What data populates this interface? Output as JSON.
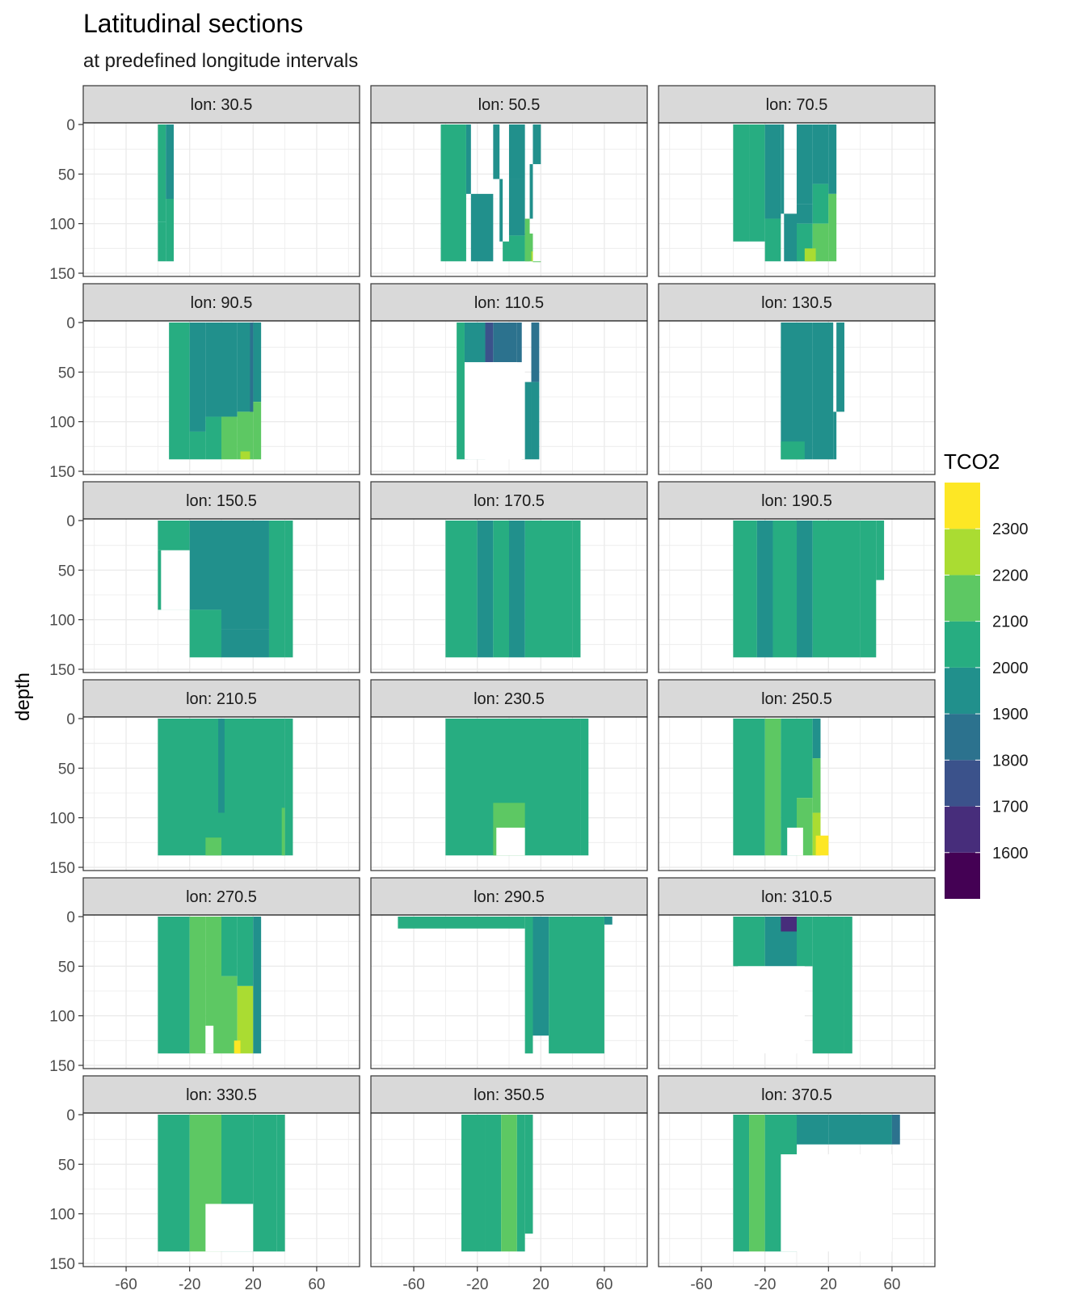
{
  "chart_data": {
    "type": "faceted-filled-contour",
    "title": "Latitudinal sections",
    "subtitle": "at predefined longitude intervals",
    "xlabel": "",
    "ylabel": "depth",
    "xlim": [
      -87,
      87
    ],
    "ylim": [
      0,
      150
    ],
    "y_reversed": true,
    "x_ticks": [
      -60,
      -20,
      20,
      60
    ],
    "x_tick_labels": [
      "-60",
      "-20",
      "20",
      "60"
    ],
    "y_ticks": [
      0,
      50,
      100,
      150
    ],
    "y_tick_labels": [
      "0",
      "50",
      "100",
      "150"
    ],
    "grid": true,
    "legend": {
      "title": "TCO2",
      "position": "right",
      "breaks": [
        1500,
        1600,
        1700,
        1800,
        1900,
        2000,
        2100,
        2200,
        2300,
        2400
      ],
      "labels": [
        "1600",
        "1700",
        "1800",
        "1900",
        "2000",
        "2100",
        "2200",
        "2300"
      ],
      "colors": [
        "#440154",
        "#472D7B",
        "#3B528B",
        "#2C728E",
        "#21908C",
        "#27AD81",
        "#5DC863",
        "#AADC32",
        "#FDE725"
      ]
    },
    "panels": [
      {
        "label": "lon: 30.5",
        "columns": [
          [
            -40,
            0,
            98,
            5
          ],
          [
            -40,
            98,
            138,
            5
          ],
          [
            -35,
            0,
            75,
            4
          ],
          [
            -35,
            75,
            138,
            5
          ]
        ],
        "patches": []
      },
      {
        "label": "lon: 50.5",
        "columns": [
          [
            -43,
            0,
            138,
            5
          ],
          [
            -27,
            0,
            70,
            4
          ],
          [
            -24,
            70,
            138,
            4
          ],
          [
            -10,
            0,
            55,
            4
          ],
          [
            -6,
            55,
            118,
            4
          ],
          [
            -4,
            118,
            138,
            5
          ],
          [
            0,
            0,
            55,
            4
          ],
          [
            0,
            55,
            112,
            4
          ],
          [
            0,
            112,
            138,
            5
          ],
          [
            15,
            0,
            40,
            4
          ],
          [
            13,
            40,
            95,
            4
          ],
          [
            10,
            95,
            138,
            6
          ],
          [
            15,
            138,
            138,
            6
          ]
        ],
        "patches": [
          [
            10,
            110,
            15,
            138,
            6
          ],
          [
            14,
            128,
            15,
            138,
            7
          ]
        ]
      },
      {
        "label": "lon: 70.5",
        "columns": [
          [
            -40,
            0,
            118,
            5
          ],
          [
            -30,
            0,
            118,
            5
          ],
          [
            -20,
            0,
            95,
            4
          ],
          [
            -20,
            95,
            138,
            5
          ],
          [
            -10,
            0,
            90,
            4
          ],
          [
            -8,
            90,
            138,
            4
          ],
          [
            0,
            0,
            80,
            4
          ],
          [
            0,
            80,
            100,
            4
          ],
          [
            0,
            100,
            138,
            5
          ],
          [
            10,
            0,
            60,
            4
          ],
          [
            10,
            60,
            100,
            5
          ],
          [
            10,
            100,
            138,
            6
          ],
          [
            20,
            0,
            70,
            4
          ],
          [
            20,
            70,
            138,
            6
          ]
        ],
        "patches": [
          [
            5,
            125,
            12,
            138,
            7
          ]
        ]
      },
      {
        "label": "lon: 90.5",
        "columns": [
          [
            -33,
            0,
            138,
            5
          ],
          [
            -20,
            0,
            110,
            4
          ],
          [
            -20,
            110,
            138,
            5
          ],
          [
            -10,
            0,
            95,
            4
          ],
          [
            -10,
            95,
            138,
            5
          ],
          [
            0,
            0,
            95,
            4
          ],
          [
            0,
            95,
            138,
            6
          ],
          [
            10,
            0,
            90,
            4
          ],
          [
            10,
            90,
            138,
            6
          ],
          [
            20,
            0,
            80,
            4
          ],
          [
            20,
            80,
            138,
            6
          ]
        ],
        "patches": [
          [
            18,
            0,
            20,
            90,
            3
          ],
          [
            12,
            130,
            18,
            138,
            7
          ]
        ]
      },
      {
        "label": "lon: 110.5",
        "columns": [
          [
            -33,
            0,
            138,
            5
          ],
          [
            -28,
            0,
            138,
            4
          ],
          [
            -15,
            0,
            40,
            2
          ],
          [
            -10,
            0,
            40,
            3
          ],
          [
            5,
            0,
            60,
            3
          ],
          [
            8,
            60,
            138,
            4
          ],
          [
            14,
            0,
            60,
            3
          ],
          [
            14,
            60,
            138,
            4
          ]
        ],
        "patches": [
          [
            -28,
            40,
            10,
            138,
            "blank"
          ],
          [
            -26,
            45,
            5,
            138,
            "blank"
          ]
        ]
      },
      {
        "label": "lon: 130.5",
        "columns": [
          [
            -10,
            0,
            138,
            4
          ],
          [
            0,
            0,
            138,
            4
          ],
          [
            10,
            0,
            138,
            4
          ],
          [
            25,
            0,
            90,
            4
          ],
          [
            23,
            90,
            138,
            4
          ]
        ],
        "patches": [
          [
            -10,
            120,
            5,
            138,
            5
          ]
        ]
      },
      {
        "label": "lon: 150.5",
        "columns": [
          [
            -40,
            0,
            30,
            5
          ],
          [
            -40,
            30,
            90,
            5
          ],
          [
            -20,
            0,
            90,
            4
          ],
          [
            -20,
            90,
            138,
            5
          ],
          [
            0,
            0,
            110,
            4
          ],
          [
            0,
            110,
            138,
            4
          ],
          [
            30,
            0,
            138,
            5
          ],
          [
            40,
            0,
            138,
            5
          ]
        ],
        "patches": [
          [
            -38,
            30,
            -20,
            90,
            "blank"
          ]
        ]
      },
      {
        "label": "lon: 170.5",
        "columns": [
          [
            -40,
            0,
            138,
            5
          ],
          [
            -20,
            0,
            138,
            4
          ],
          [
            -10,
            0,
            138,
            5
          ],
          [
            0,
            0,
            138,
            4
          ],
          [
            10,
            0,
            138,
            5
          ],
          [
            40,
            0,
            138,
            5
          ]
        ],
        "patches": []
      },
      {
        "label": "lon: 190.5",
        "columns": [
          [
            -40,
            0,
            138,
            5
          ],
          [
            -25,
            0,
            138,
            4
          ],
          [
            -15,
            0,
            138,
            5
          ],
          [
            0,
            0,
            138,
            4
          ],
          [
            10,
            0,
            138,
            5
          ],
          [
            40,
            0,
            138,
            5
          ],
          [
            50,
            0,
            60,
            5
          ]
        ],
        "patches": []
      },
      {
        "label": "lon: 210.5",
        "columns": [
          [
            -40,
            0,
            138,
            5
          ],
          [
            0,
            0,
            138,
            5
          ],
          [
            40,
            0,
            138,
            5
          ]
        ],
        "patches": [
          [
            -2,
            0,
            2,
            95,
            4
          ],
          [
            -10,
            120,
            0,
            138,
            6
          ],
          [
            38,
            90,
            40,
            138,
            6
          ]
        ]
      },
      {
        "label": "lon: 230.5",
        "columns": [
          [
            -40,
            0,
            138,
            5
          ],
          [
            0,
            0,
            138,
            5
          ],
          [
            45,
            0,
            138,
            5
          ]
        ],
        "patches": [
          [
            -10,
            85,
            10,
            138,
            6
          ],
          [
            -8,
            110,
            10,
            138,
            "blank"
          ]
        ]
      },
      {
        "label": "lon: 250.5",
        "columns": [
          [
            -40,
            0,
            138,
            5
          ],
          [
            -20,
            0,
            138,
            6
          ],
          [
            -10,
            0,
            138,
            5
          ],
          [
            0,
            0,
            80,
            5
          ],
          [
            0,
            80,
            138,
            6
          ],
          [
            10,
            0,
            40,
            4
          ],
          [
            10,
            40,
            95,
            6
          ],
          [
            10,
            95,
            138,
            7
          ]
        ],
        "patches": [
          [
            -6,
            110,
            4,
            138,
            "blank"
          ],
          [
            12,
            118,
            20,
            138,
            8
          ]
        ]
      },
      {
        "label": "lon: 270.5",
        "columns": [
          [
            -40,
            0,
            138,
            5
          ],
          [
            -20,
            0,
            138,
            6
          ],
          [
            -10,
            0,
            138,
            6
          ],
          [
            0,
            0,
            60,
            5
          ],
          [
            0,
            60,
            138,
            6
          ],
          [
            10,
            0,
            70,
            5
          ],
          [
            10,
            70,
            138,
            7
          ],
          [
            20,
            0,
            138,
            4
          ]
        ],
        "patches": [
          [
            -10,
            110,
            -5,
            138,
            "blank"
          ],
          [
            8,
            125,
            12,
            138,
            8
          ]
        ]
      },
      {
        "label": "lon: 290.5",
        "columns": [
          [
            -70,
            0,
            12,
            5
          ],
          [
            0,
            0,
            12,
            5
          ],
          [
            10,
            0,
            138,
            5
          ],
          [
            15,
            0,
            120,
            4
          ],
          [
            25,
            0,
            138,
            5
          ],
          [
            60,
            0,
            8,
            4
          ]
        ],
        "patches": []
      },
      {
        "label": "lon: 310.5",
        "columns": [
          [
            -40,
            0,
            50,
            5
          ],
          [
            -20,
            0,
            50,
            4
          ],
          [
            0,
            0,
            50,
            5
          ],
          [
            10,
            0,
            138,
            5
          ],
          [
            30,
            0,
            138,
            5
          ]
        ],
        "patches": [
          [
            -10,
            0,
            0,
            15,
            1
          ],
          [
            -37,
            50,
            5,
            138,
            "blank"
          ]
        ]
      },
      {
        "label": "lon: 330.5",
        "columns": [
          [
            -40,
            0,
            138,
            5
          ],
          [
            -20,
            0,
            138,
            6
          ],
          [
            0,
            0,
            138,
            5
          ],
          [
            20,
            0,
            138,
            5
          ],
          [
            35,
            0,
            138,
            5
          ]
        ],
        "patches": [
          [
            -10,
            90,
            20,
            138,
            "blank"
          ]
        ]
      },
      {
        "label": "lon: 350.5",
        "columns": [
          [
            -30,
            0,
            138,
            5
          ],
          [
            -15,
            0,
            138,
            5
          ],
          [
            -5,
            0,
            138,
            6
          ],
          [
            5,
            0,
            138,
            5
          ],
          [
            10,
            0,
            120,
            5
          ]
        ],
        "patches": []
      },
      {
        "label": "lon: 370.5",
        "columns": [
          [
            -40,
            0,
            138,
            5
          ],
          [
            -30,
            0,
            138,
            6
          ],
          [
            -20,
            0,
            138,
            5
          ],
          [
            0,
            0,
            30,
            4
          ],
          [
            20,
            0,
            30,
            4
          ],
          [
            60,
            0,
            30,
            3
          ]
        ],
        "patches": [
          [
            -10,
            40,
            60,
            138,
            "blank"
          ]
        ]
      }
    ]
  }
}
